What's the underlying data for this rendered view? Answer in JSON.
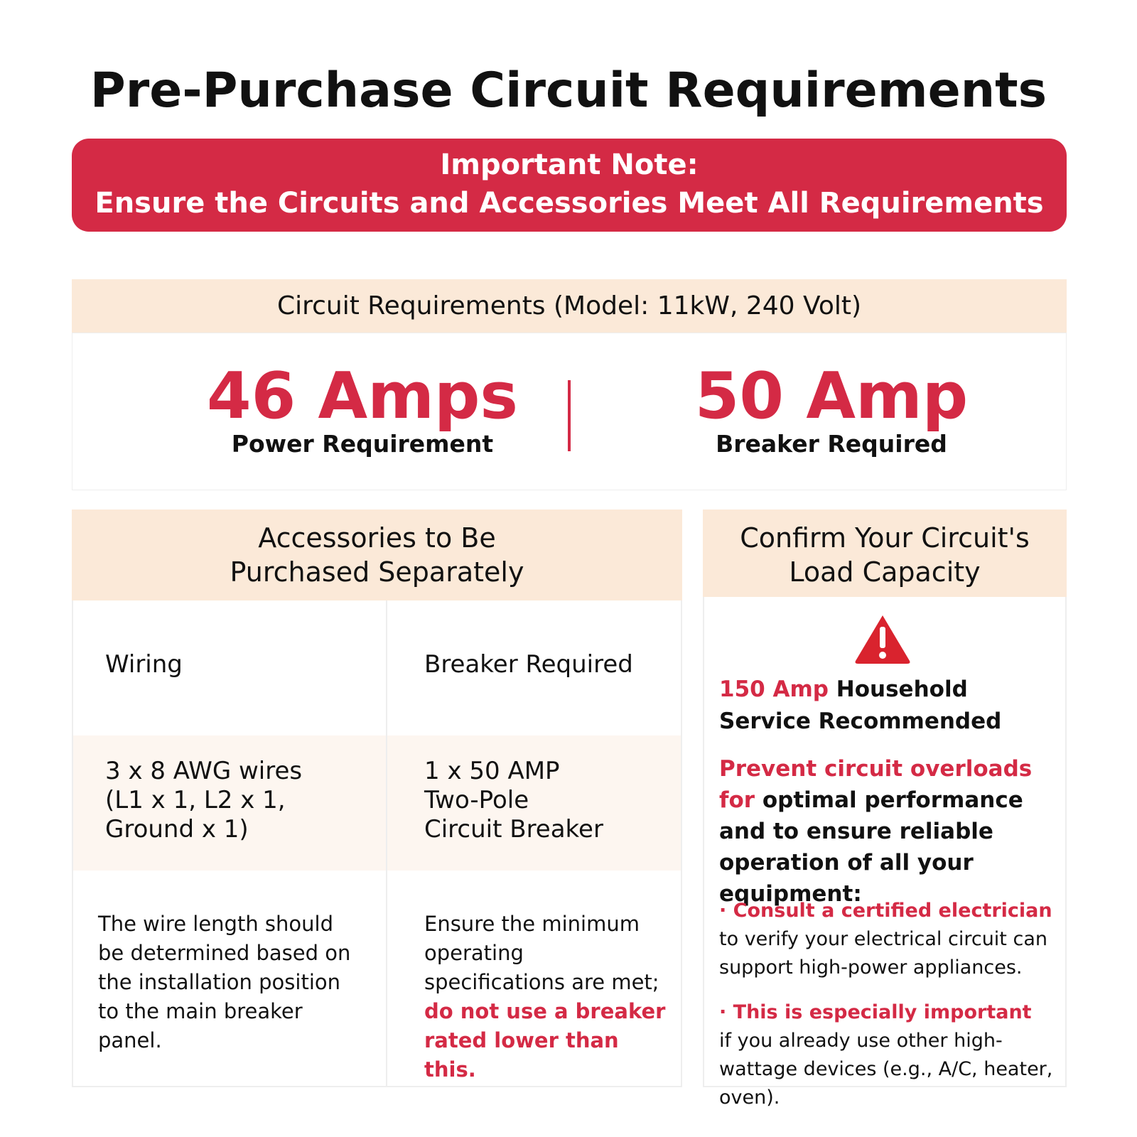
{
  "title": "Pre-Purchase Circuit Requirements",
  "note": {
    "line1": "Important Note:",
    "line2": "Ensure the Circuits and Accessories Meet All Requirements"
  },
  "requirements": {
    "header": "Circuit Requirements (Model: 11kW, 240 Volt)",
    "items": [
      {
        "value": "46 Amps",
        "label": "Power Requirement"
      },
      {
        "value": "50 Amp",
        "label": "Breaker Required"
      }
    ]
  },
  "accessories": {
    "header_lines": [
      "Accessories to Be",
      "Purchased Separately"
    ],
    "columns": [
      {
        "heading": "Wiring",
        "spec_lines": [
          "3 x 8 AWG wires",
          "(L1 x 1, L2 x 1,",
          "Ground x 1)"
        ],
        "note": "The wire length should be determined based on the installation position to the main breaker panel.",
        "note_highlight": null
      },
      {
        "heading": "Breaker Required",
        "spec_lines": [
          "1 x 50 AMP",
          "Two-Pole",
          "Circuit Breaker"
        ],
        "note": "Ensure the minimum operating specifications are met;",
        "note_highlight": "do not use a breaker rated lower than this."
      }
    ]
  },
  "load": {
    "header_lines": [
      "Confirm Your Circuit's",
      "Load Capacity"
    ],
    "recommend_highlight": "150 Amp",
    "recommend_text": "Household Service Recommended",
    "prevent_highlight": "Prevent circuit overloads for",
    "prevent_text": "optimal performance and to ensure reliable operation of all your equipment:",
    "bullets": [
      {
        "title": "· Consult a certified electrician",
        "text": "to verify your electrical circuit can support high-power appliances."
      },
      {
        "title": "· This is especially important",
        "text": "if you already use other high-wattage devices (e.g., A/C, heater, oven)."
      }
    ]
  }
}
